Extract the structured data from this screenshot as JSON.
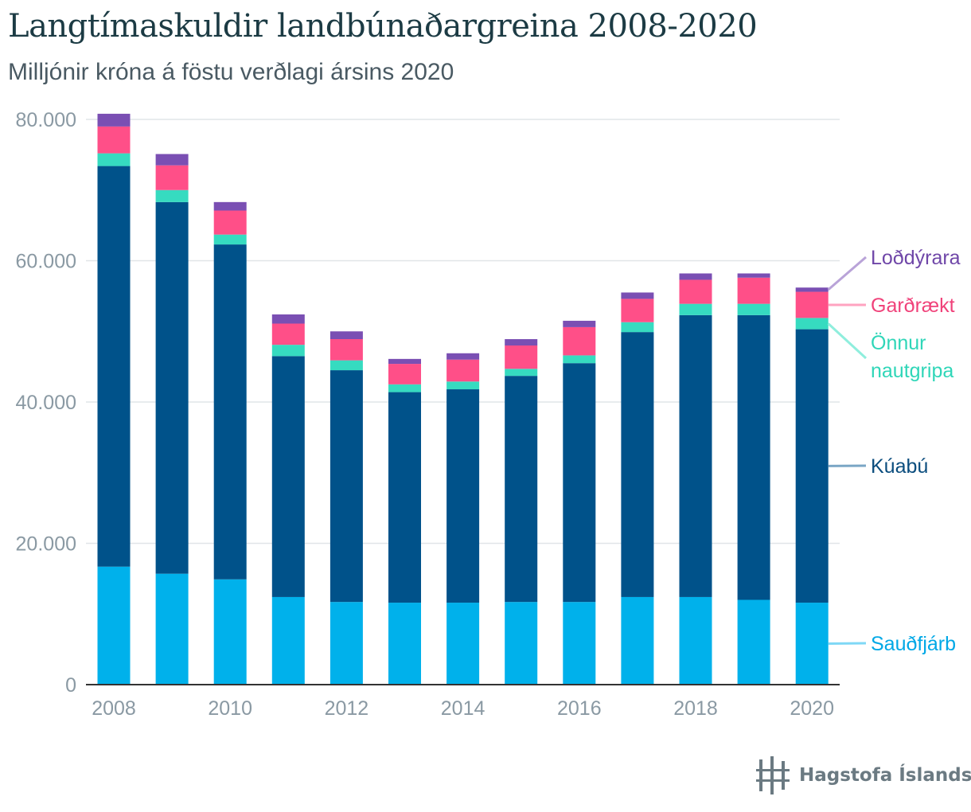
{
  "title": "Langtímaskuldir landbúnaðargreina 2008-2020",
  "subtitle": "Milljónir króna á föstu verðlagi ársins 2020",
  "logo_text": "Hagstofa Íslands",
  "chart_data": {
    "type": "bar",
    "stacked": true,
    "categories": [
      2008,
      2009,
      2010,
      2011,
      2012,
      2013,
      2014,
      2015,
      2016,
      2017,
      2018,
      2019,
      2020
    ],
    "x_tick_labels": [
      "2008",
      "2010",
      "2012",
      "2014",
      "2016",
      "2018",
      "2020"
    ],
    "y_tick_labels": [
      "0",
      "20.000",
      "40.000",
      "60.000",
      "80.000"
    ],
    "y_ticks": [
      0,
      20000,
      40000,
      60000,
      80000
    ],
    "ylim": [
      0,
      80000
    ],
    "grid": true,
    "legend_placement": "right",
    "series": [
      {
        "name": "Sauðfjárb",
        "color": "#00b1eb",
        "values": [
          16700,
          15700,
          14900,
          12400,
          11700,
          11600,
          11600,
          11700,
          11700,
          12400,
          12400,
          12000,
          11600
        ]
      },
      {
        "name": "Kúabú",
        "color": "#00528a",
        "values": [
          56700,
          52600,
          47400,
          34100,
          32800,
          29800,
          30200,
          32000,
          33800,
          37500,
          39900,
          40300,
          38700
        ]
      },
      {
        "name": "Önnur nautgripa",
        "color": "#36dbc0",
        "values": [
          1800,
          1700,
          1400,
          1600,
          1400,
          1100,
          1100,
          1000,
          1100,
          1400,
          1600,
          1600,
          1600
        ]
      },
      {
        "name": "Garðrækt",
        "color": "#ff4f88",
        "values": [
          3800,
          3500,
          3400,
          3000,
          3000,
          2900,
          3100,
          3300,
          4000,
          3300,
          3400,
          3700,
          3700
        ]
      },
      {
        "name": "Loðdýrara",
        "color": "#7a4fb3",
        "values": [
          1800,
          1600,
          1200,
          1300,
          1100,
          700,
          900,
          900,
          900,
          900,
          900,
          600,
          600
        ]
      }
    ],
    "legend_lines": [
      {
        "series": 4,
        "lines": [
          "Loðdýrara"
        ]
      },
      {
        "series": 3,
        "lines": [
          "Garðrækt"
        ]
      },
      {
        "series": 2,
        "lines": [
          "Önnur",
          "nautgripa"
        ]
      },
      {
        "series": 1,
        "lines": [
          "Kúabú"
        ]
      },
      {
        "series": 0,
        "lines": [
          "Sauðfjárb"
        ]
      }
    ]
  }
}
